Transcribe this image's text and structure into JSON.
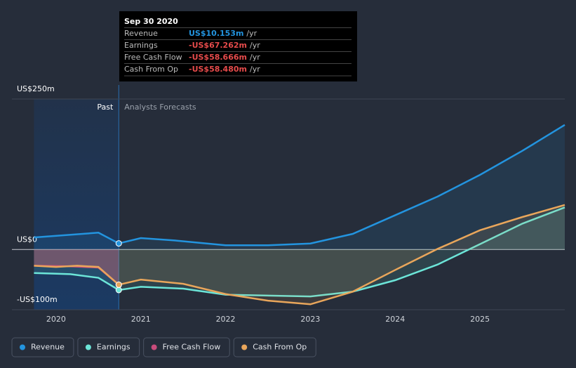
{
  "chart_data": {
    "type": "line",
    "annotations": {
      "past": "Past",
      "forecast": "Analysts Forecasts"
    },
    "xlim": [
      2019.48,
      2026.0
    ],
    "xticks": [
      2020,
      2021,
      2022,
      2023,
      2024,
      2025
    ],
    "ylim": [
      -100,
      250
    ],
    "yticks": [
      {
        "value": 250,
        "label": "US$250m"
      },
      {
        "value": 0,
        "label": "US$0"
      },
      {
        "value": -100,
        "label": "-US$100m"
      }
    ],
    "series": [
      {
        "name": "Revenue",
        "color": "#2394df",
        "x": [
          2019.74,
          2020.5,
          2020.74,
          2021.0,
          2021.4,
          2022.0,
          2022.5,
          2023.0,
          2023.5,
          2024.0,
          2024.5,
          2025.0,
          2025.5,
          2026.0
        ],
        "values": [
          20,
          28,
          10.153,
          19,
          15,
          7,
          7,
          10,
          26,
          57,
          88,
          124,
          164,
          207
        ]
      },
      {
        "name": "Earnings",
        "color": "#6ce5d8",
        "x": [
          2019.74,
          2020.17,
          2020.5,
          2020.74,
          2021.0,
          2021.5,
          2022.0,
          2023.0,
          2023.5,
          2024.0,
          2024.5,
          2025.0,
          2025.5,
          2026.0
        ],
        "values": [
          -39,
          -41,
          -47,
          -67.262,
          -62,
          -65,
          -75,
          -78,
          -70,
          -51,
          -25,
          9,
          43,
          70
        ]
      },
      {
        "name": "Free Cash Flow",
        "color": "#c94c7c",
        "x": [
          2019.74,
          2020.17,
          2020.5,
          2020.74
        ],
        "values": [
          -27,
          -28,
          -30,
          -58.666
        ]
      },
      {
        "name": "Cash From Op",
        "color": "#e9a65b",
        "x": [
          2019.74,
          2020.0,
          2020.25,
          2020.5,
          2020.74,
          2021.0,
          2021.5,
          2022.0,
          2022.5,
          2023.0,
          2023.5,
          2024.0,
          2024.5,
          2025.0,
          2025.5,
          2026.0
        ],
        "values": [
          -27,
          -29,
          -27,
          -29,
          -58.48,
          -50,
          -57,
          -74,
          -85,
          -91,
          -70,
          -34,
          1,
          32,
          54,
          74
        ]
      }
    ]
  },
  "tooltip": {
    "title": "Sep 30 2020",
    "rows": [
      {
        "label": "Revenue",
        "value": "US$10.153m",
        "unit": "/yr"
      },
      {
        "label": "Earnings",
        "value": "-US$67.262m",
        "unit": "/yr"
      },
      {
        "label": "Free Cash Flow",
        "value": "-US$58.666m",
        "unit": "/yr"
      },
      {
        "label": "Cash From Op",
        "value": "-US$58.480m",
        "unit": "/yr"
      }
    ]
  }
}
